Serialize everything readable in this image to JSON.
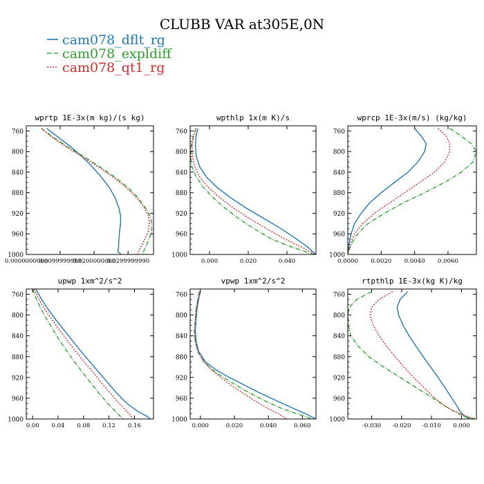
{
  "figure": {
    "title": "CLUBB VAR at305E,0N"
  },
  "legend": [
    {
      "name": "cam078_dflt_rg",
      "color": "#1f77b4",
      "dash": "solid"
    },
    {
      "name": "cam078_expldiff",
      "color": "#2ca02c",
      "dash": "longdash"
    },
    {
      "name": "cam078_qt1_rg",
      "color": "#d62728",
      "dash": "dotted"
    }
  ],
  "colors": {
    "dflt": "#1f77b4",
    "expldiff": "#2ca02c",
    "qt1": "#d62728",
    "axis": "#000000"
  },
  "chart_data": [
    {
      "type": "line",
      "title": "wprtp  1E-3x(m kg)/(s kg)",
      "xlim": [
        0.0,
        0.0375
      ],
      "ylim": [
        1000,
        750
      ],
      "xticks": [
        0.0,
        0.01,
        0.02,
        0.03
      ],
      "xtick_labels": [
        "0.0000000000",
        "0.0099999998",
        "0.0200000000",
        "0.0299999990"
      ],
      "yticks": [
        760,
        800,
        840,
        880,
        920,
        960,
        1000
      ],
      "y": [
        755,
        770,
        790,
        810,
        830,
        850,
        870,
        890,
        910,
        925,
        940,
        955,
        970,
        985,
        995,
        1000
      ],
      "series": [
        {
          "name": "cam078_dflt_rg",
          "values": [
            0.006,
            0.009,
            0.013,
            0.0165,
            0.0195,
            0.0222,
            0.0245,
            0.0262,
            0.0273,
            0.0278,
            0.0278,
            0.0275,
            0.0273,
            0.0272,
            0.027,
            0.028
          ]
        },
        {
          "name": "cam078_expldiff",
          "values": [
            0.0045,
            0.0075,
            0.012,
            0.017,
            0.0218,
            0.0262,
            0.03,
            0.033,
            0.0352,
            0.0365,
            0.037,
            0.037,
            0.0362,
            0.0352,
            0.0345,
            0.0345
          ]
        },
        {
          "name": "cam078_qt1_rg",
          "values": [
            0.0045,
            0.0072,
            0.0115,
            0.0165,
            0.0212,
            0.0256,
            0.0295,
            0.0326,
            0.0348,
            0.036,
            0.0363,
            0.036,
            0.035,
            0.0338,
            0.033,
            0.033
          ]
        }
      ]
    },
    {
      "type": "line",
      "title": "wpthlp  1x(m K)/s",
      "xlim": [
        -0.01,
        0.055
      ],
      "ylim": [
        1000,
        750
      ],
      "xticks": [
        0.0,
        0.02,
        0.04
      ],
      "xtick_labels": [
        "0.000",
        "0.020",
        "0.040"
      ],
      "yticks": [
        760,
        800,
        840,
        880,
        920,
        960,
        1000
      ],
      "y": [
        755,
        770,
        790,
        810,
        830,
        850,
        870,
        890,
        910,
        930,
        950,
        970,
        985,
        995,
        1000
      ],
      "series": [
        {
          "name": "cam078_dflt_rg",
          "values": [
            -0.006,
            -0.007,
            -0.0073,
            -0.0068,
            -0.005,
            -0.0015,
            0.004,
            0.011,
            0.019,
            0.028,
            0.037,
            0.045,
            0.0505,
            0.0535,
            0.055
          ]
        },
        {
          "name": "cam078_expldiff",
          "values": [
            -0.007,
            -0.0085,
            -0.0095,
            -0.0097,
            -0.009,
            -0.0068,
            -0.003,
            0.002,
            0.008,
            0.015,
            0.023,
            0.032,
            0.042,
            0.05,
            0.054
          ]
        },
        {
          "name": "cam078_qt1_rg",
          "values": [
            -0.007,
            -0.0082,
            -0.009,
            -0.0088,
            -0.0075,
            -0.005,
            -0.0005,
            0.0055,
            0.0125,
            0.0205,
            0.0295,
            0.039,
            0.047,
            0.0525,
            0.055
          ]
        }
      ]
    },
    {
      "type": "line",
      "title": "wprcp  1E-3x(m/s) (kg/kg)",
      "xlim": [
        0.0,
        0.0077
      ],
      "ylim": [
        1000,
        750
      ],
      "xticks": [
        0.0,
        0.002,
        0.004,
        0.006
      ],
      "xtick_labels": [
        "0.0000",
        "0.0020",
        "0.0040",
        "0.0060"
      ],
      "yticks": [
        760,
        800,
        840,
        880,
        920,
        960,
        1000
      ],
      "y": [
        755,
        770,
        785,
        800,
        820,
        840,
        860,
        880,
        900,
        920,
        940,
        960,
        975,
        990,
        1000
      ],
      "series": [
        {
          "name": "cam078_dflt_rg",
          "values": [
            0.004,
            0.0044,
            0.0047,
            0.0046,
            0.0042,
            0.0036,
            0.0028,
            0.002,
            0.0013,
            0.0008,
            0.0004,
            0.0002,
            0.0001,
            3e-05,
            0.0
          ]
        },
        {
          "name": "cam078_expldiff",
          "values": [
            0.0061,
            0.0068,
            0.0074,
            0.0077,
            0.0075,
            0.0068,
            0.0058,
            0.0046,
            0.0033,
            0.0022,
            0.0012,
            0.0006,
            0.0003,
            0.0001,
            0.0
          ]
        },
        {
          "name": "cam078_qt1_rg",
          "values": [
            0.0054,
            0.0059,
            0.0061,
            0.0061,
            0.0058,
            0.0052,
            0.0043,
            0.0034,
            0.0025,
            0.0016,
            0.0009,
            0.0004,
            0.0002,
            5e-05,
            0.0
          ]
        }
      ]
    },
    {
      "type": "line",
      "title": "upwp  1xm^2/s^2",
      "xlim": [
        -0.01,
        0.19
      ],
      "ylim": [
        1000,
        750
      ],
      "xticks": [
        0.0,
        0.04,
        0.08,
        0.12,
        0.16
      ],
      "xtick_labels": [
        "0.00",
        "0.04",
        "0.08",
        "0.12",
        "0.16"
      ],
      "yticks": [
        760,
        800,
        840,
        880,
        920,
        960,
        1000
      ],
      "y": [
        750,
        770,
        790,
        810,
        830,
        850,
        870,
        890,
        910,
        930,
        950,
        970,
        985,
        995,
        1000
      ],
      "series": [
        {
          "name": "cam078_dflt_rg",
          "values": [
            0.005,
            0.014,
            0.025,
            0.037,
            0.05,
            0.063,
            0.076,
            0.09,
            0.104,
            0.118,
            0.132,
            0.148,
            0.165,
            0.18,
            0.185
          ]
        },
        {
          "name": "cam078_expldiff",
          "values": [
            0.0,
            0.006,
            0.014,
            0.023,
            0.033,
            0.043,
            0.054,
            0.066,
            0.078,
            0.091,
            0.104,
            0.118,
            0.13,
            0.138,
            0.142
          ]
        },
        {
          "name": "cam078_qt1_rg",
          "values": [
            0.002,
            0.01,
            0.02,
            0.031,
            0.043,
            0.055,
            0.068,
            0.081,
            0.095,
            0.108,
            0.122,
            0.136,
            0.148,
            0.155,
            0.158
          ]
        }
      ]
    },
    {
      "type": "line",
      "title": "vpwp  1xm^2/s^2",
      "xlim": [
        -0.006,
        0.068
      ],
      "ylim": [
        1000,
        750
      ],
      "xticks": [
        0.0,
        0.02,
        0.04,
        0.06
      ],
      "xtick_labels": [
        "0.000",
        "0.020",
        "0.040",
        "0.060"
      ],
      "yticks": [
        760,
        800,
        840,
        880,
        920,
        960,
        1000
      ],
      "y": [
        755,
        770,
        790,
        810,
        830,
        850,
        870,
        890,
        905,
        920,
        935,
        950,
        965,
        980,
        990,
        1000
      ],
      "series": [
        {
          "name": "cam078_dflt_rg",
          "values": [
            0.0,
            -0.001,
            -0.002,
            -0.0025,
            -0.003,
            -0.0025,
            -0.001,
            0.003,
            0.009,
            0.017,
            0.026,
            0.035,
            0.045,
            0.055,
            0.062,
            0.068
          ]
        },
        {
          "name": "cam078_expldiff",
          "values": [
            -0.0005,
            -0.0015,
            -0.0025,
            -0.003,
            -0.0035,
            -0.003,
            -0.0015,
            0.002,
            0.007,
            0.0135,
            0.021,
            0.029,
            0.038,
            0.048,
            0.057,
            0.066
          ]
        },
        {
          "name": "cam078_qt1_rg",
          "values": [
            -0.0005,
            -0.0015,
            -0.0025,
            -0.003,
            -0.0035,
            -0.003,
            -0.0015,
            0.002,
            0.0065,
            0.012,
            0.018,
            0.025,
            0.032,
            0.04,
            0.046,
            0.051
          ]
        }
      ]
    },
    {
      "type": "line",
      "title": "rtpthlp  1E-3x(kg K)/kg",
      "xlim": [
        -0.038,
        0.005
      ],
      "ylim": [
        1000,
        750
      ],
      "xticks": [
        -0.03,
        -0.02,
        -0.01,
        0.0
      ],
      "xtick_labels": [
        "-0.030",
        "-0.020",
        "-0.010",
        "0.000"
      ],
      "yticks": [
        760,
        800,
        840,
        880,
        920,
        960,
        1000
      ],
      "y": [
        755,
        770,
        785,
        800,
        820,
        840,
        860,
        880,
        900,
        920,
        940,
        960,
        975,
        985,
        995,
        1000
      ],
      "series": [
        {
          "name": "cam078_dflt_rg",
          "values": [
            -0.018,
            -0.0205,
            -0.0215,
            -0.021,
            -0.0195,
            -0.0175,
            -0.0152,
            -0.0128,
            -0.0103,
            -0.0078,
            -0.0055,
            -0.0032,
            -0.0015,
            -0.0005,
            0.001,
            0.003
          ]
        },
        {
          "name": "cam078_expldiff",
          "values": [
            -0.03,
            -0.035,
            -0.0375,
            -0.038,
            -0.0378,
            -0.037,
            -0.0345,
            -0.031,
            -0.026,
            -0.0205,
            -0.015,
            -0.0095,
            -0.0055,
            -0.0025,
            0.001,
            0.0045
          ]
        },
        {
          "name": "cam078_qt1_rg",
          "values": [
            -0.023,
            -0.0275,
            -0.03,
            -0.0305,
            -0.0295,
            -0.0275,
            -0.025,
            -0.0222,
            -0.0192,
            -0.016,
            -0.0125,
            -0.0088,
            -0.0055,
            -0.0025,
            0.002,
            0.0045
          ]
        }
      ]
    }
  ]
}
